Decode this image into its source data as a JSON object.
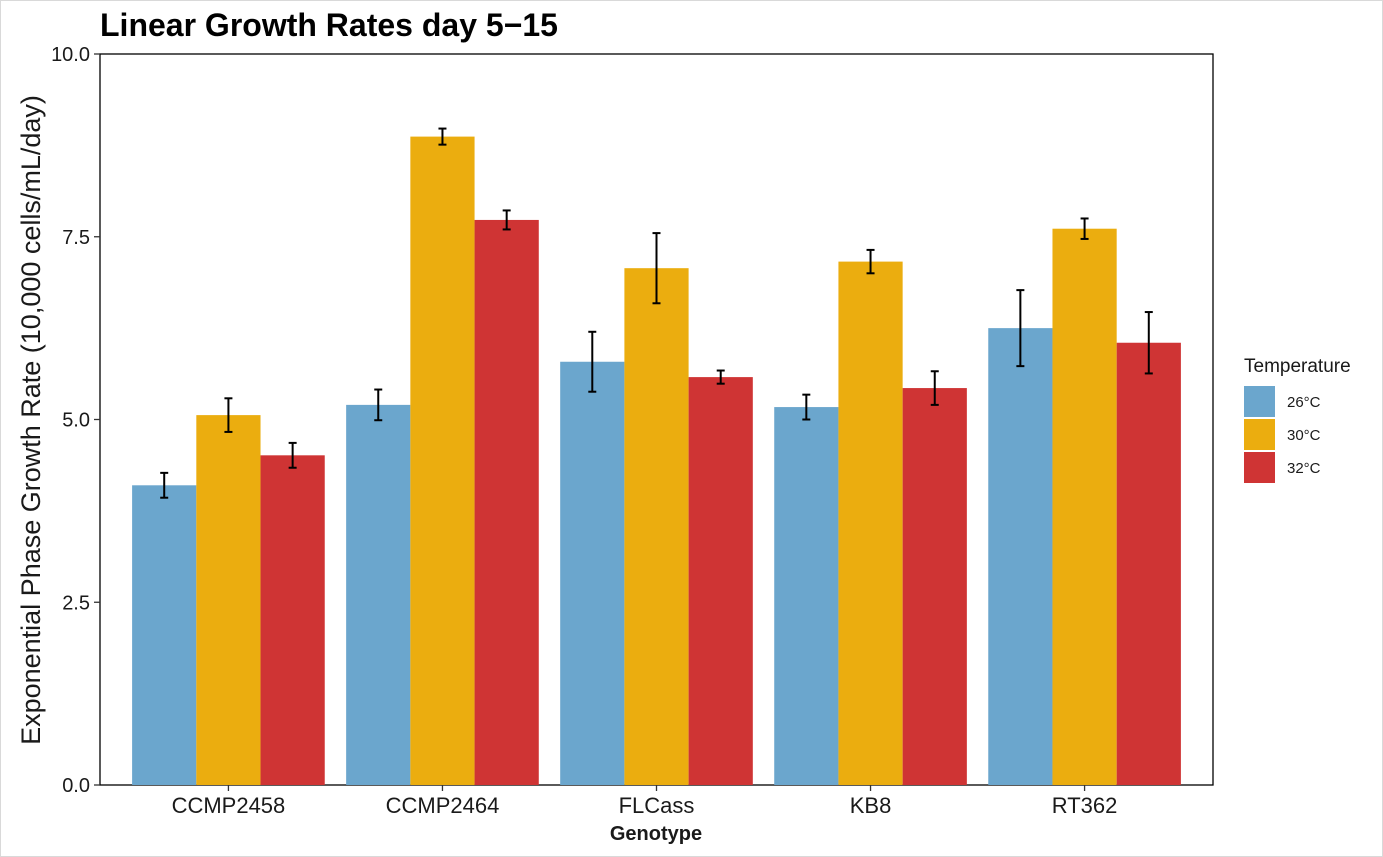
{
  "chart_data": {
    "type": "bar",
    "title": "Linear Growth Rates day 5−15",
    "xlabel": "Genotype",
    "ylabel": "Exponential Phase Growth Rate (10,000 cells/mL/day)",
    "ylim": [
      0,
      10
    ],
    "yticks": [
      "0.0",
      "2.5",
      "5.0",
      "7.5",
      "10.0"
    ],
    "categories": [
      "CCMP2458",
      "CCMP2464",
      "FLCass",
      "KB8",
      "RT362"
    ],
    "grid": false,
    "legend": {
      "title": "Temperature",
      "position": "right"
    },
    "series": [
      {
        "name": "26°C",
        "color": "#6BA6CD",
        "values": [
          4.1,
          5.2,
          5.79,
          5.17,
          6.25
        ],
        "errors": [
          0.17,
          0.21,
          0.41,
          0.17,
          0.52
        ]
      },
      {
        "name": "30°C",
        "color": "#EBAD0F",
        "values": [
          5.06,
          8.87,
          7.07,
          7.16,
          7.61
        ],
        "errors": [
          0.23,
          0.11,
          0.48,
          0.16,
          0.14
        ]
      },
      {
        "name": "32°C",
        "color": "#CF3434",
        "values": [
          4.51,
          7.73,
          5.58,
          5.43,
          6.05
        ],
        "errors": [
          0.17,
          0.13,
          0.09,
          0.23,
          0.42
        ]
      }
    ]
  }
}
